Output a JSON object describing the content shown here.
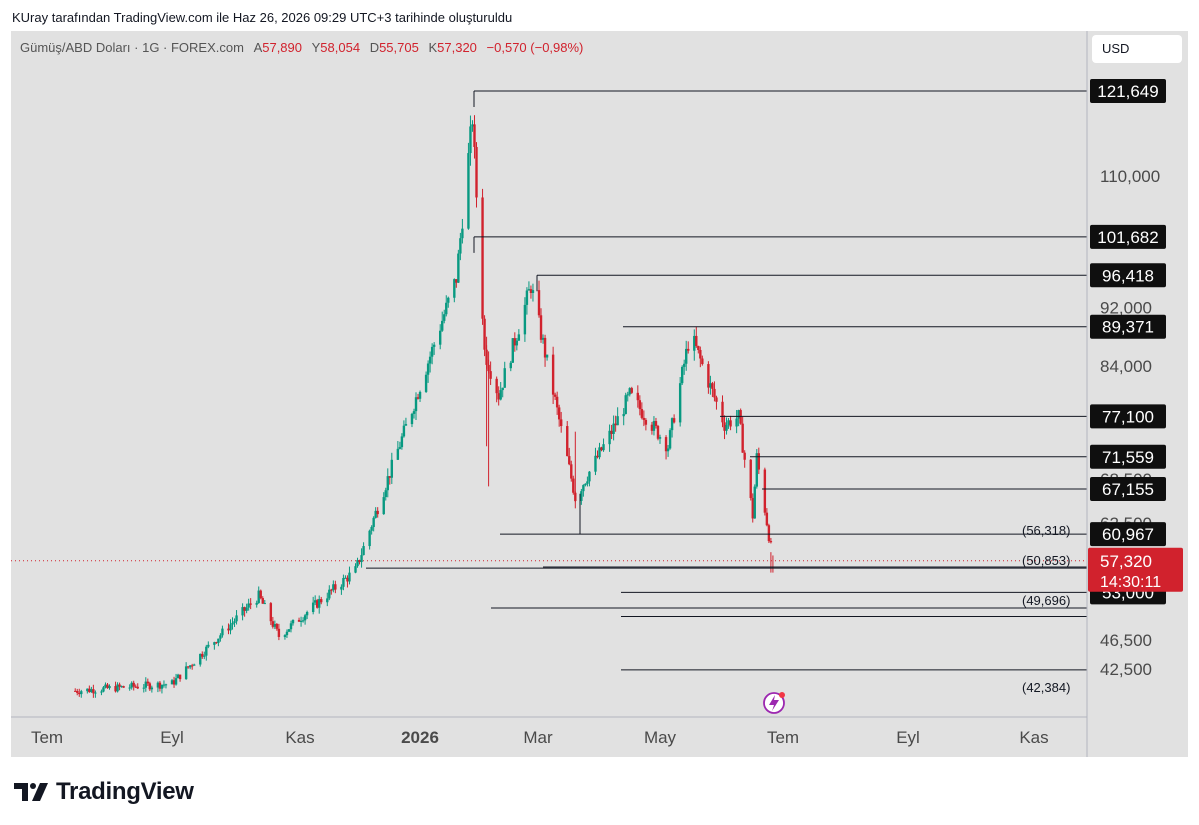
{
  "caption": "KUray tarafından TradingView.com ile Haz 26, 2026 09:29 UTC+3 tarihinde oluşturuldu",
  "legend": {
    "symbol": "Gümüş/ABD Doları · 1G · FOREX.com",
    "open_label": "A",
    "open": "57,890",
    "high_label": "Y",
    "high": "58,054",
    "low_label": "D",
    "low": "55,705",
    "close_label": "K",
    "close": "57,320",
    "change": "−0,570 (−0,98%)"
  },
  "currency": "USD",
  "brand": "TradingView",
  "colors": {
    "up": "#089981",
    "down": "#d1222d",
    "background": "#e1e1e1",
    "label_bg": "#0f0f0f"
  },
  "chart_data": {
    "type": "candlestick",
    "instrument": "Gümüş/ABD Doları",
    "interval": "1G",
    "x_ticks": [
      "Tem",
      "Eyl",
      "Kas",
      "2026",
      "Mar",
      "May",
      "Tem",
      "Eyl",
      "Kas"
    ],
    "y_ticks": [
      "110,000",
      "92,000",
      "84,000",
      "68,500",
      "62,500",
      "46,500",
      "42,500"
    ],
    "y_range": [
      39.5,
      125
    ],
    "last_price": "57,320",
    "countdown": "14:30:11",
    "horizontal_levels": [
      "121,649",
      "101,682",
      "96,418",
      "89,371",
      "77,100",
      "71,559",
      "67,155",
      "60,967",
      "56,470",
      "53,000"
    ],
    "projection_levels": [
      "(56,318)",
      "(50,853)",
      "(49,696)",
      "(42,384)"
    ],
    "price_anchors": [
      {
        "date": "2025-07-15",
        "price": 39.5
      },
      {
        "date": "2025-09-01",
        "price": 40.5
      },
      {
        "date": "2025-10-14",
        "price": 52.5
      },
      {
        "date": "2025-10-24",
        "price": 47.0
      },
      {
        "date": "2025-11-12",
        "price": 51.5
      },
      {
        "date": "2025-12-01",
        "price": 56.0
      },
      {
        "date": "2025-12-29",
        "price": 78.0
      },
      {
        "date": "2026-01-20",
        "price": 96.0
      },
      {
        "date": "2026-01-28",
        "price": 118.0
      },
      {
        "date": "2026-02-03",
        "price": 86.0
      },
      {
        "date": "2026-02-10",
        "price": 80.0
      },
      {
        "date": "2026-02-26",
        "price": 95.0
      },
      {
        "date": "2026-03-20",
        "price": 66.0
      },
      {
        "date": "2026-04-07",
        "price": 75.0
      },
      {
        "date": "2026-04-16",
        "price": 80.0
      },
      {
        "date": "2026-05-05",
        "price": 73.0
      },
      {
        "date": "2026-05-16",
        "price": 88.5
      },
      {
        "date": "2026-06-02",
        "price": 76.0
      },
      {
        "date": "2026-06-09",
        "price": 77.0
      },
      {
        "date": "2026-06-16",
        "price": 63.5
      },
      {
        "date": "2026-06-18",
        "price": 71.5
      },
      {
        "date": "2026-06-26",
        "price": 57.3
      }
    ]
  }
}
